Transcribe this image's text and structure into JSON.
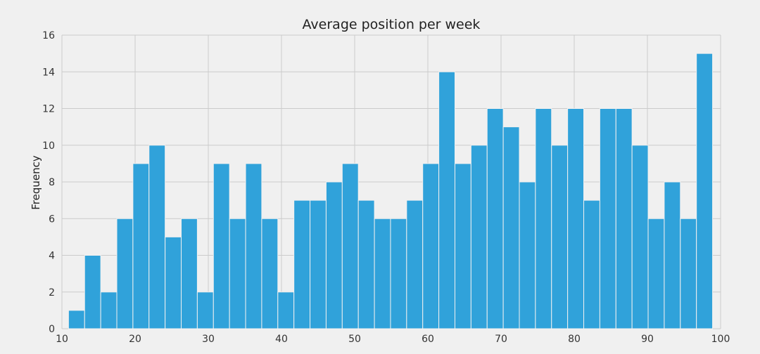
{
  "chart_data": {
    "type": "bar",
    "title": "Average position per week",
    "xlabel": "",
    "ylabel": "Frequency",
    "xlim": [
      10,
      100
    ],
    "ylim": [
      0,
      16
    ],
    "xticks": [
      10,
      20,
      30,
      40,
      50,
      60,
      70,
      80,
      90,
      100
    ],
    "yticks": [
      0,
      2,
      4,
      6,
      8,
      10,
      12,
      14,
      16
    ],
    "grid": true,
    "bin_start": 10.9,
    "bin_width": 2.2,
    "values": [
      1,
      4,
      2,
      6,
      9,
      10,
      5,
      6,
      2,
      9,
      6,
      9,
      6,
      2,
      7,
      7,
      8,
      9,
      7,
      6,
      6,
      7,
      9,
      14,
      9,
      10,
      12,
      11,
      8,
      12,
      10,
      12,
      7,
      12,
      12,
      10,
      6,
      8,
      6,
      15
    ],
    "color": "#30a2da",
    "background": "#f0f0f0"
  }
}
